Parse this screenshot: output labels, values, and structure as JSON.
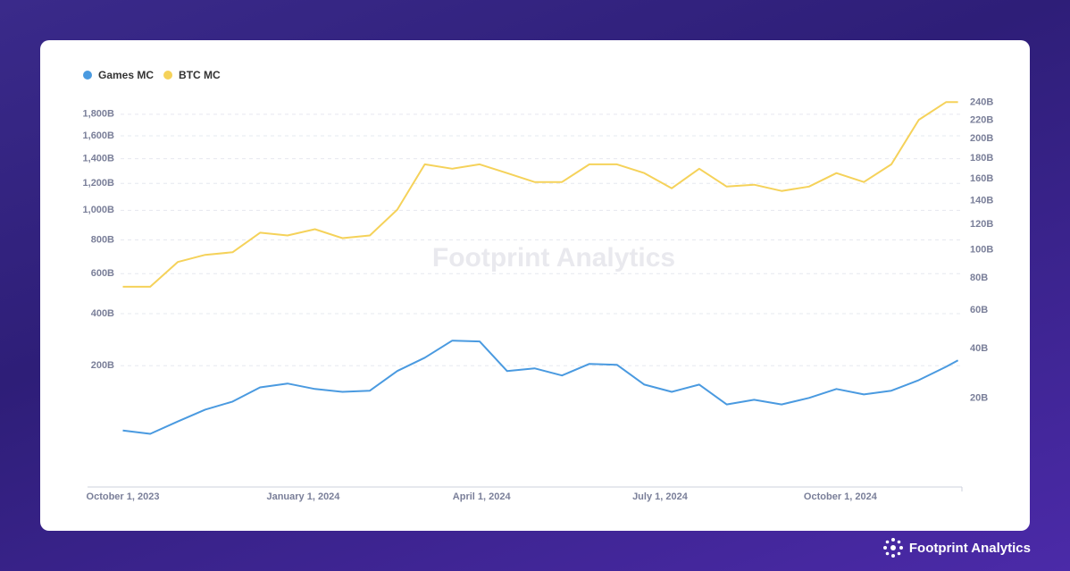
{
  "brand": "Footprint Analytics",
  "chart_data": {
    "type": "line",
    "scale": "sqrt",
    "grid": true,
    "legend": "top-left",
    "watermark": "Footprint Analytics",
    "x": [
      "2023-10-01",
      "2023-10-15",
      "2023-10-29",
      "2023-11-12",
      "2023-11-26",
      "2023-12-10",
      "2023-12-24",
      "2024-01-07",
      "2024-01-21",
      "2024-02-04",
      "2024-02-18",
      "2024-03-03",
      "2024-03-17",
      "2024-03-31",
      "2024-04-14",
      "2024-04-28",
      "2024-05-12",
      "2024-05-26",
      "2024-06-09",
      "2024-06-23",
      "2024-07-07",
      "2024-07-21",
      "2024-08-04",
      "2024-08-18",
      "2024-09-01",
      "2024-09-15",
      "2024-09-29",
      "2024-10-13",
      "2024-10-27",
      "2024-11-10",
      "2024-11-24",
      "2024-11-30"
    ],
    "series": [
      {
        "name": "Games MC",
        "color": "#4a9ae0",
        "axis": "y2",
        "values": [
          10.7,
          9.9,
          13.0,
          16.4,
          18.9,
          23.8,
          25.2,
          23.2,
          22.2,
          22.6,
          30.1,
          35.8,
          43.8,
          43.4,
          30.1,
          31.2,
          28.3,
          33.1,
          32.7,
          24.8,
          22.2,
          24.8,
          18.0,
          19.5,
          18.0,
          20.1,
          23.2,
          21.3,
          22.6,
          26.5,
          31.9,
          34.6
        ]
      },
      {
        "name": "BTC MC",
        "color": "#f5d25a",
        "values": [
          530,
          530,
          666,
          708,
          724,
          847,
          829,
          870,
          812,
          829,
          1005,
          1354,
          1318,
          1354,
          1282,
          1211,
          1211,
          1354,
          1354,
          1282,
          1163,
          1318,
          1176,
          1190,
          1142,
          1176,
          1282,
          1211,
          1354,
          1747,
          1918,
          1918
        ]
      }
    ],
    "xlim": [
      "2023-09-13",
      "2024-12-02"
    ],
    "xticks": [
      {
        "value": "2023-10-01",
        "label": "October 1, 2023"
      },
      {
        "value": "2024-01-01",
        "label": "January 1, 2024"
      },
      {
        "value": "2024-04-01",
        "label": "April 1, 2024"
      },
      {
        "value": "2024-07-01",
        "label": "July 1, 2024"
      },
      {
        "value": "2024-10-01",
        "label": "October 1, 2024"
      }
    ],
    "ylim": [
      0,
      2000
    ],
    "yticks": [
      {
        "value": 200,
        "label": "200B"
      },
      {
        "value": 400,
        "label": "400B"
      },
      {
        "value": 600,
        "label": "600B"
      },
      {
        "value": 800,
        "label": "800B"
      },
      {
        "value": 1000,
        "label": "1,000B"
      },
      {
        "value": 1200,
        "label": "1,200B"
      },
      {
        "value": 1400,
        "label": "1,400B"
      },
      {
        "value": 1600,
        "label": "1,600B"
      },
      {
        "value": 1800,
        "label": "1,800B"
      }
    ],
    "y2lim": [
      1,
      250
    ],
    "y2ticks": [
      {
        "value": 20,
        "label": "20B"
      },
      {
        "value": 40,
        "label": "40B"
      },
      {
        "value": 60,
        "label": "60B"
      },
      {
        "value": 80,
        "label": "80B"
      },
      {
        "value": 100,
        "label": "100B"
      },
      {
        "value": 120,
        "label": "120B"
      },
      {
        "value": 140,
        "label": "140B"
      },
      {
        "value": 160,
        "label": "160B"
      },
      {
        "value": 180,
        "label": "180B"
      },
      {
        "value": 200,
        "label": "200B"
      },
      {
        "value": 220,
        "label": "220B"
      },
      {
        "value": 240,
        "label": "240B"
      }
    ]
  }
}
